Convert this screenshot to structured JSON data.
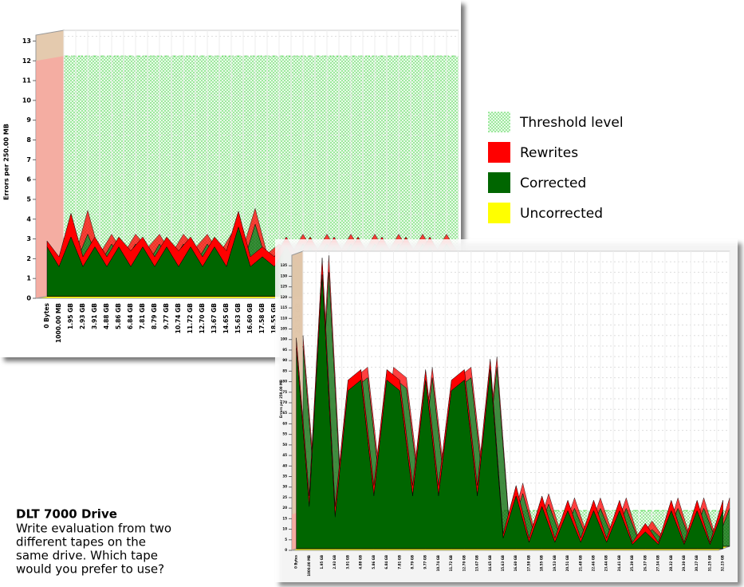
{
  "chart_data": [
    {
      "type": "area3d",
      "y_label": "Errors per 250.00 MB",
      "categories": [
        "0 Bytes",
        "1000.00 MB",
        "1.95 GB",
        "2.93 GB",
        "3.91 GB",
        "4.88 GB",
        "5.86 GB",
        "6.84 GB",
        "7.81 GB",
        "8.79 GB",
        "9.77 GB",
        "10.74 GB",
        "11.72 GB",
        "12.70 GB",
        "13.67 GB",
        "14.65 GB",
        "15.63 GB",
        "16.60 GB",
        "17.58 GB",
        "18.55 GB",
        "19.53 GB",
        "20.51 GB",
        "21.48 GB",
        "22.46 GB",
        "23.44 GB",
        "24.41 GB",
        "25.39 GB",
        "26.37 GB",
        "27.34 GB",
        "28.32 GB",
        "29.30 GB",
        "30.27 GB",
        "31.25 GB",
        "32.23 GB"
      ],
      "ylim": [
        0,
        13.3
      ],
      "yticks": [
        0,
        1,
        2,
        3,
        4,
        5,
        6,
        7,
        8,
        9,
        10,
        11,
        12,
        13
      ],
      "grid": true,
      "series": [
        {
          "name": "Threshold level",
          "color": "#b5f0b5",
          "values": [
            12,
            12,
            12,
            12,
            12,
            12,
            12,
            12,
            12,
            12,
            12,
            12,
            12,
            12,
            12,
            12,
            12,
            12,
            12,
            12,
            12,
            12,
            12,
            12,
            12,
            12,
            12,
            12,
            12,
            12,
            12,
            12,
            12,
            12
          ]
        },
        {
          "name": "Uncorrected",
          "color": "#ffff00",
          "values": [
            0,
            0,
            0,
            0,
            0,
            0,
            0,
            0,
            0,
            0,
            0,
            0,
            0,
            0,
            0,
            0,
            0,
            0,
            0,
            0,
            0,
            0,
            0,
            0,
            0,
            0,
            0,
            0,
            0,
            0,
            0,
            0,
            0,
            0
          ]
        },
        {
          "name": "Corrected",
          "color": "#006600",
          "values": [
            2.5,
            1.5,
            3,
            1.5,
            2.5,
            1.5,
            2.5,
            1.5,
            2.5,
            1.5,
            2.5,
            1.5,
            2.5,
            1.5,
            2.5,
            1.5,
            3.5,
            1.5,
            2,
            1.5,
            2.5,
            1.5,
            2.5,
            1.5,
            2.5,
            1.5,
            2.5,
            1.5,
            2.5,
            1.5,
            2.5,
            1.5,
            2.5,
            1.5
          ]
        },
        {
          "name": "Rewrites",
          "color": "#ff0000",
          "values": [
            0.3,
            0.5,
            1.2,
            0.5,
            0.5,
            0.5,
            0.5,
            0.8,
            0.5,
            0.5,
            0.5,
            0.8,
            0.5,
            0.5,
            0.5,
            0.8,
            0.8,
            0.5,
            0.5,
            0.5,
            0.5,
            0.5,
            0.5,
            0.5,
            0.5,
            0.5,
            0.5,
            0.5,
            0.5,
            0.5,
            0.5,
            0.5,
            0.5,
            0.5
          ]
        }
      ]
    },
    {
      "type": "area3d",
      "y_label": "Errors per 250.00 MB",
      "categories": [
        "0 Bytes",
        "1000.00 MB",
        "1.95 GB",
        "2.93 GB",
        "3.91 GB",
        "4.88 GB",
        "5.86 GB",
        "6.84 GB",
        "7.81 GB",
        "8.79 GB",
        "9.77 GB",
        "10.74 GB",
        "11.72 GB",
        "12.70 GB",
        "13.67 GB",
        "14.65 GB",
        "15.63 GB",
        "16.60 GB",
        "17.58 GB",
        "18.55 GB",
        "19.53 GB",
        "20.51 GB",
        "21.48 GB",
        "22.46 GB",
        "23.44 GB",
        "24.41 GB",
        "25.39 GB",
        "26.37 GB",
        "27.34 GB",
        "28.32 GB",
        "29.30 GB",
        "30.27 GB",
        "31.25 GB",
        "32.23 GB"
      ],
      "ylim": [
        0,
        140
      ],
      "yticks": [
        0,
        5,
        10,
        15,
        20,
        25,
        30,
        35,
        40,
        45,
        50,
        55,
        60,
        65,
        70,
        75,
        80,
        85,
        90,
        95,
        100,
        105,
        110,
        115,
        120,
        125,
        130,
        135
      ],
      "grid": true,
      "series": [
        {
          "name": "Threshold level",
          "color": "#b5f0b5",
          "values": [
            17,
            17,
            17,
            17,
            17,
            17,
            17,
            17,
            17,
            17,
            17,
            17,
            17,
            17,
            17,
            17,
            17,
            17,
            17,
            17,
            17,
            17,
            17,
            17,
            17,
            17,
            17,
            17,
            17,
            17,
            17,
            17,
            17,
            17
          ]
        },
        {
          "name": "Uncorrected",
          "color": "#ffff00",
          "values": [
            0,
            0,
            0,
            0,
            0,
            0,
            0,
            0,
            0,
            0,
            0,
            0,
            0,
            0,
            0,
            0,
            0,
            0,
            0,
            0,
            0,
            0,
            0,
            0,
            0,
            0,
            0,
            0,
            0,
            0,
            0,
            0,
            0,
            0
          ]
        },
        {
          "name": "Corrected",
          "color": "#006600",
          "values": [
            95,
            20,
            130,
            15,
            75,
            80,
            25,
            80,
            75,
            25,
            80,
            25,
            75,
            80,
            25,
            85,
            5,
            25,
            3,
            20,
            3,
            18,
            3,
            18,
            3,
            18,
            2,
            8,
            2,
            18,
            2,
            18,
            2,
            18
          ]
        },
        {
          "name": "Rewrites",
          "color": "#ff0000",
          "values": [
            5,
            5,
            8,
            5,
            5,
            5,
            5,
            5,
            5,
            5,
            5,
            5,
            5,
            5,
            5,
            5,
            2,
            5,
            2,
            5,
            2,
            5,
            2,
            5,
            2,
            5,
            1,
            4,
            1,
            5,
            1,
            5,
            1,
            5
          ]
        }
      ]
    }
  ],
  "caption": {
    "title": "DLT 7000 Drive",
    "lines": [
      "Write evaluation from two",
      "different tapes on the",
      "same drive. Which tape",
      "would you prefer to use?"
    ]
  }
}
